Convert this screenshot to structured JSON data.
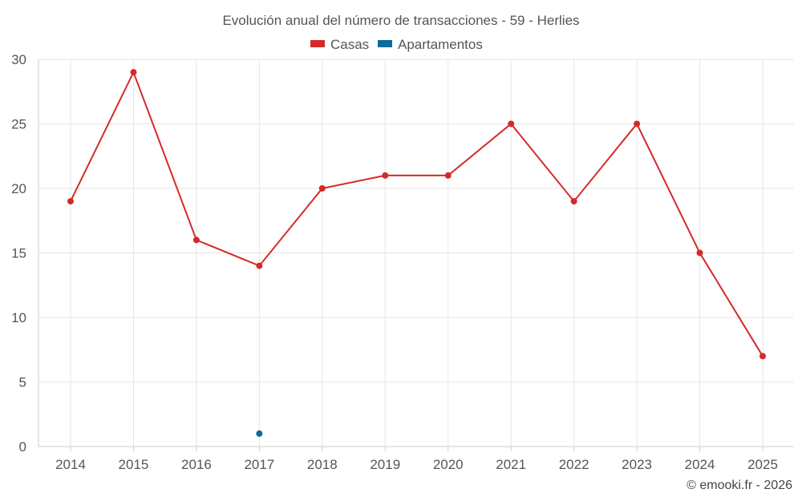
{
  "chart_data": {
    "type": "line",
    "title": "Evolución anual del número de transacciones - 59 - Herlies",
    "categories": [
      "2014",
      "2015",
      "2016",
      "2017",
      "2018",
      "2019",
      "2020",
      "2021",
      "2022",
      "2023",
      "2024",
      "2025"
    ],
    "series": [
      {
        "name": "Casas",
        "color": "#d42a2a",
        "values": [
          19,
          29,
          16,
          14,
          20,
          21,
          21,
          25,
          19,
          25,
          15,
          7
        ]
      },
      {
        "name": "Apartamentos",
        "color": "#0b6a9e",
        "values": [
          null,
          null,
          null,
          1,
          null,
          null,
          null,
          null,
          null,
          null,
          null,
          null
        ]
      }
    ],
    "yticks": [
      "0",
      "5",
      "10",
      "15",
      "20",
      "25",
      "30"
    ],
    "ylim": [
      0,
      30
    ],
    "xlabel": "",
    "ylabel": "",
    "legend_position": "top-center",
    "grid": true
  },
  "credit": "© emooki.fr - 2026"
}
